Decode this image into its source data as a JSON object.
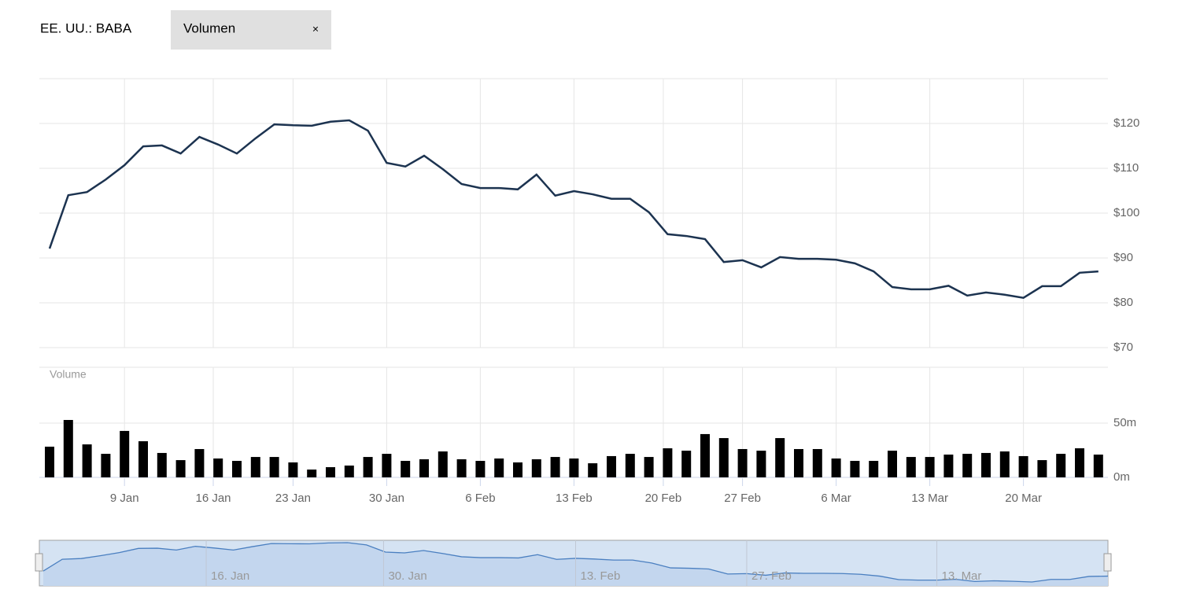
{
  "header": {
    "symbol": "EE. UU.: BABA",
    "tab": "Volumen",
    "close": "×"
  },
  "chart_data": [
    {
      "type": "line",
      "name": "price",
      "color": "#1c3350",
      "values": [
        92.1,
        104.0,
        104.7,
        107.5,
        110.7,
        114.9,
        115.1,
        113.3,
        117.0,
        115.3,
        113.3,
        116.7,
        119.8,
        119.6,
        119.5,
        120.4,
        120.7,
        118.4,
        111.2,
        110.4,
        112.8,
        109.8,
        106.5,
        105.6,
        105.6,
        105.3,
        108.6,
        103.9,
        104.9,
        104.2,
        103.2,
        103.2,
        100.2,
        95.3,
        94.9,
        94.2,
        89.1,
        89.5,
        87.9,
        90.2,
        89.8,
        89.8,
        89.6,
        88.8,
        87.0,
        83.5,
        83.0,
        83.0,
        83.8,
        81.6,
        82.3,
        81.8,
        81.1,
        83.7,
        83.7,
        86.7,
        87.0
      ],
      "ylim": [
        70,
        130
      ],
      "yticks": [
        {
          "value": 70,
          "label": "$70"
        },
        {
          "value": 80,
          "label": "$80"
        },
        {
          "value": 90,
          "label": "$90"
        },
        {
          "value": 100,
          "label": "$100"
        },
        {
          "value": 110,
          "label": "$110"
        },
        {
          "value": 120,
          "label": "$120"
        }
      ],
      "xticks": [
        {
          "value": 4,
          "label": "9 Jan"
        },
        {
          "value": 8.74,
          "label": "16 Jan"
        },
        {
          "value": 13,
          "label": "23 Jan"
        },
        {
          "value": 18,
          "label": "30 Jan"
        },
        {
          "value": 23,
          "label": "6 Feb"
        },
        {
          "value": 28,
          "label": "13 Feb"
        },
        {
          "value": 32.77,
          "label": "20 Feb"
        },
        {
          "value": 37,
          "label": "27 Feb"
        },
        {
          "value": 42,
          "label": "6 Mar"
        },
        {
          "value": 47,
          "label": "13 Mar"
        },
        {
          "value": 52,
          "label": "20 Mar"
        }
      ],
      "grid": true
    },
    {
      "type": "bar",
      "name": "volume",
      "title": "Volume",
      "color": "#000000",
      "values": [
        28.3,
        52.9,
        30.4,
        21.7,
        42.8,
        33.3,
        22.5,
        15.9,
        26.1,
        17.4,
        15.2,
        18.8,
        18.8,
        13.8,
        7.2,
        9.4,
        10.9,
        18.8,
        21.7,
        15.2,
        16.7,
        23.9,
        16.7,
        15.2,
        17.4,
        13.8,
        16.7,
        18.8,
        17.4,
        13.0,
        19.6,
        21.7,
        18.8,
        26.8,
        24.6,
        39.9,
        36.2,
        26.1,
        24.6,
        36.2,
        26.1,
        26.1,
        17.4,
        15.2,
        15.2,
        24.6,
        18.8,
        18.8,
        21.0,
        21.7,
        22.5,
        23.9,
        19.6,
        15.9,
        21.7,
        26.8,
        21.0
      ],
      "ylim": [
        0,
        100
      ],
      "yticks": [
        {
          "value": 0,
          "label": "0m"
        },
        {
          "value": 50,
          "label": "50m"
        }
      ],
      "grid": true
    },
    {
      "type": "navigator",
      "color": "#4a7fc0",
      "xticks": [
        {
          "value": 8.57,
          "label": "16. Jan"
        },
        {
          "value": 17.9,
          "label": "30. Jan"
        },
        {
          "value": 28,
          "label": "13. Feb"
        },
        {
          "value": 37,
          "label": "27. Feb"
        },
        {
          "value": 47,
          "label": "13. Mar"
        }
      ]
    }
  ]
}
